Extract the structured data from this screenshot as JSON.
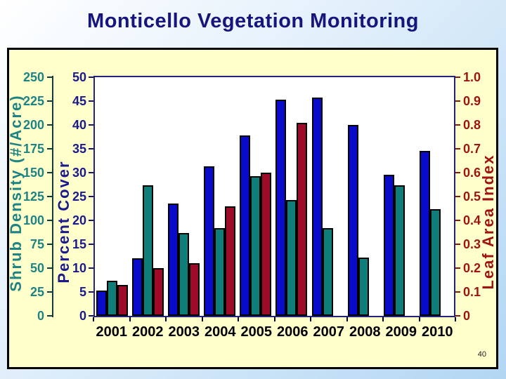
{
  "slide": {
    "title": "Monticello Vegetation Monitoring",
    "page_number": "40"
  },
  "colors": {
    "title": "#15157d",
    "background_top": "#ffffff",
    "background_bottom": "#b2d6f3",
    "panel_bg": "#ffffcc",
    "panel_border": "#000000",
    "plot_bg": "#ffffff",
    "plot_border": "#23237a",
    "bar_outline": "#000000",
    "x_label": "#000000"
  },
  "chart_data": {
    "type": "bar",
    "title": "Monticello Vegetation Monitoring",
    "grid": false,
    "legend": false,
    "categories": [
      "2001",
      "2002",
      "2003",
      "2004",
      "2005",
      "2006",
      "2007",
      "2008",
      "2009",
      "2010"
    ],
    "series": [
      {
        "name": "Percent Cover",
        "axis": "percent_cover",
        "color": "#0a0aca",
        "values": [
          5.3,
          12,
          23.5,
          31.3,
          37.8,
          45.3,
          45.8,
          40,
          29.5,
          34.5
        ]
      },
      {
        "name": "Shrub Density (#/Acre)",
        "axis": "shrub_density",
        "color": "#107e78",
        "values": [
          37,
          137,
          87,
          92,
          146,
          121,
          92,
          61,
          137,
          112
        ]
      },
      {
        "name": "Leaf Area Index",
        "axis": "leaf_area_index",
        "color": "#9e0b28",
        "values": [
          0.13,
          0.2,
          0.22,
          0.46,
          0.6,
          0.81,
          null,
          null,
          null,
          null
        ]
      }
    ],
    "axes": {
      "shrub_density": {
        "label": "Shrub Density (#/Acre)",
        "side": "outer-left",
        "min": 0,
        "max": 250,
        "ticks": [
          0,
          25,
          50,
          75,
          100,
          125,
          150,
          175,
          200,
          225,
          250
        ],
        "color": "#1d8384",
        "tick_color": "#103c3c"
      },
      "percent_cover": {
        "label": "Percent Cover",
        "side": "left",
        "min": 0,
        "max": 50,
        "ticks": [
          0,
          5,
          10,
          15,
          20,
          25,
          30,
          35,
          40,
          45,
          50
        ],
        "color": "#1a1a8c",
        "tick_color": "#15156b"
      },
      "leaf_area_index": {
        "label": "Leaf Area Index",
        "side": "right",
        "min": 0,
        "max": 1,
        "ticks": [
          0,
          0.1,
          0.2,
          0.3,
          0.4,
          0.5,
          0.6,
          0.7,
          0.8,
          0.9,
          1.0
        ],
        "tick_labels": [
          "0",
          "0.1",
          "0.2",
          "0.3",
          "0.4",
          "0.5",
          "0.6",
          "0.7",
          "0.8",
          "0.9",
          "1.0"
        ],
        "color": "#9e1313",
        "tick_color": "#8b1515"
      }
    },
    "x_axis": {
      "labels": [
        "2001",
        "2002",
        "2003",
        "2004",
        "2005",
        "2006",
        "2007",
        "2008",
        "2009",
        "2010"
      ],
      "label_color": "#000000"
    }
  }
}
